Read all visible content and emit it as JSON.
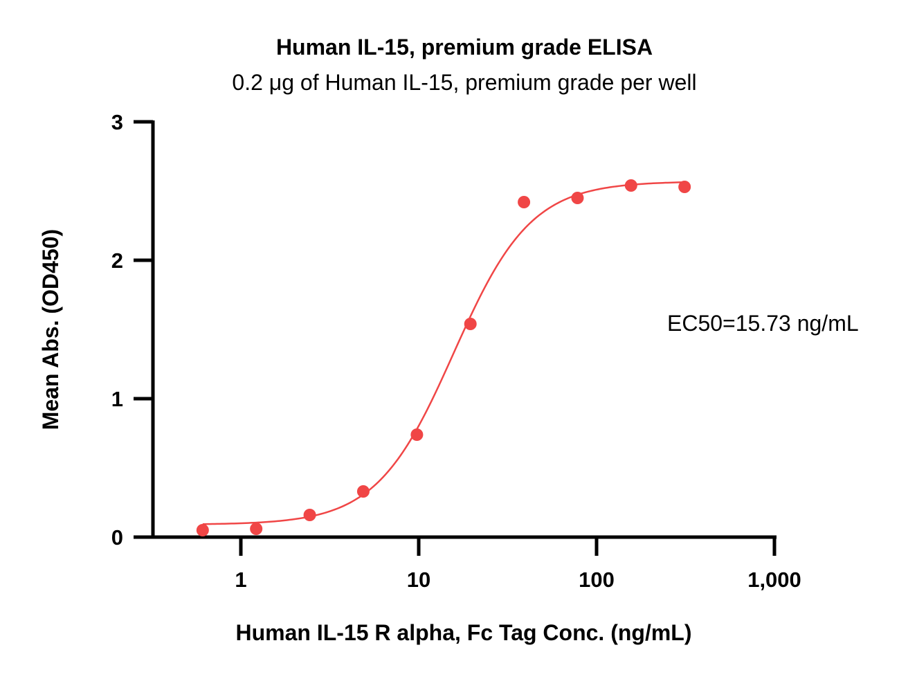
{
  "chart_data": {
    "type": "scatter",
    "title": "Human IL-15, premium grade ELISA",
    "subtitle": "0.2 μg of Human IL-15, premium grade per well",
    "xlabel": "Human IL-15 R alpha, Fc Tag Conc. (ng/mL)",
    "ylabel": "Mean Abs. (OD450)",
    "x_scale": "log",
    "xlim": [
      0.3,
      1000
    ],
    "ylim": [
      0,
      3
    ],
    "x_ticks": [
      1,
      10,
      100,
      1000
    ],
    "x_tick_labels": [
      "1",
      "10",
      "100",
      "1,000"
    ],
    "y_ticks": [
      0,
      1,
      2,
      3
    ],
    "y_tick_labels": [
      "0",
      "1",
      "2",
      "3"
    ],
    "series": [
      {
        "x": [
          0.61,
          1.22,
          2.44,
          4.88,
          9.77,
          19.53,
          39.06,
          78.13,
          156.25,
          312.5
        ],
        "y": [
          0.05,
          0.06,
          0.16,
          0.33,
          0.74,
          1.54,
          2.42,
          2.45,
          2.54,
          2.53
        ],
        "color": "#f04646"
      }
    ],
    "fit": {
      "model": "4PL",
      "bottom": 0.09,
      "top": 2.57,
      "ec50": 15.73,
      "hill": 2.0,
      "color": "#f04646"
    },
    "annotation": "EC50=15.73 ng/mL",
    "grid": false,
    "legend": "none"
  }
}
